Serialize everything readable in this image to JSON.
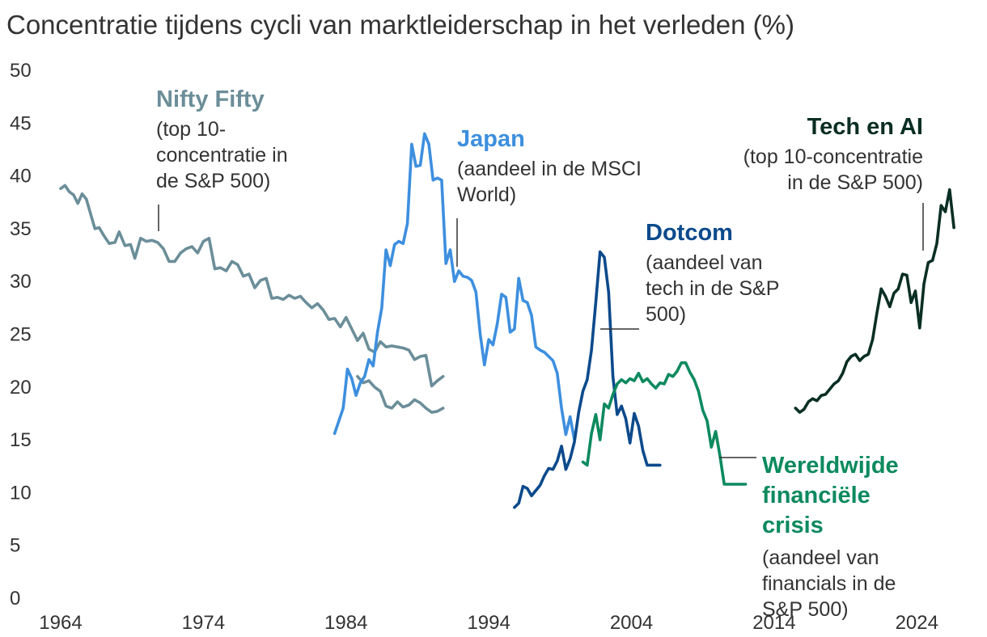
{
  "chart_data": {
    "type": "line",
    "title": "Concentratie tijdens cycli van marktleiderschap in het verleden (%)",
    "xlabel": "",
    "ylabel": "",
    "xlim": [
      1964,
      2027.5
    ],
    "ylim": [
      0,
      50
    ],
    "xticks": [
      "1964",
      "1974",
      "1984",
      "1994",
      "2004",
      "2014",
      "2024"
    ],
    "yticks": [
      "0",
      "5",
      "10",
      "15",
      "20",
      "25",
      "30",
      "35",
      "40",
      "45",
      "50"
    ],
    "grid": false,
    "legend": "none",
    "series": [
      {
        "name": "Nifty Fifty",
        "color": "#6b8e99",
        "x": [
          1964.0,
          1964.3,
          1964.6,
          1964.9,
          1965.2,
          1965.5,
          1965.8,
          1966.1,
          1966.4,
          1966.7,
          1967.0,
          1967.4,
          1967.8,
          1968.1,
          1968.5,
          1968.9,
          1969.2,
          1969.6,
          1970.0,
          1970.4,
          1970.8,
          1971.2,
          1971.6,
          1972.0,
          1972.4,
          1972.8,
          1973.2,
          1973.6,
          1974.0,
          1974.4,
          1974.8,
          1975.2,
          1975.6,
          1976.0,
          1976.4,
          1976.8,
          1977.2,
          1977.6,
          1978.0,
          1978.4,
          1978.8,
          1979.2,
          1979.6,
          1980.0,
          1980.4,
          1980.8,
          1981.2,
          1981.6,
          1982.0,
          1982.4,
          1982.8,
          1983.2,
          1983.6,
          1984.0,
          1984.4,
          1984.8,
          1985.2,
          1985.6,
          1986.0,
          1986.4,
          1986.8,
          1987.2,
          1987.6,
          1988.0,
          1988.4,
          1988.8,
          1989.2,
          1989.6,
          1990.0,
          1990.4,
          1990.8
        ],
        "values": [
          38.8,
          39.1,
          38.5,
          38.2,
          37.4,
          38.3,
          37.8,
          36.4,
          35.0,
          35.1,
          34.4,
          33.6,
          33.7,
          34.7,
          33.4,
          33.5,
          32.2,
          34.1,
          33.8,
          33.9,
          33.7,
          33.1,
          31.9,
          31.9,
          32.7,
          33.1,
          33.3,
          32.7,
          33.8,
          34.1,
          31.2,
          31.3,
          31.0,
          31.9,
          31.6,
          30.5,
          30.7,
          29.4,
          30.1,
          30.3,
          28.4,
          28.5,
          28.3,
          28.7,
          28.4,
          28.6,
          28.0,
          27.5,
          27.9,
          27.3,
          26.4,
          26.5,
          25.7,
          26.6,
          25.5,
          24.4,
          25.1,
          23.6,
          23.3,
          24.3,
          23.8,
          23.9,
          23.8,
          23.7,
          23.5,
          22.6,
          22.9,
          23.0,
          20.1,
          20.6,
          21.0
        ],
        "x2": [
          1984.8,
          1985.2,
          1985.6,
          1986.0,
          1986.4,
          1986.8,
          1987.2,
          1987.6,
          1988.0,
          1988.4,
          1988.8,
          1989.2,
          1989.6,
          1990.0,
          1990.4,
          1990.8
        ],
        "values2": [
          21.0,
          20.4,
          20.6,
          20.0,
          19.6,
          18.2,
          18.0,
          18.6,
          18.1,
          18.3,
          18.8,
          18.5,
          18.0,
          17.6,
          17.7,
          18.0
        ]
      },
      {
        "name": "Japan",
        "color": "#3d8fdf",
        "x": [
          1983.2,
          1983.5,
          1983.8,
          1984.1,
          1984.4,
          1984.7,
          1985.0,
          1985.3,
          1985.6,
          1985.9,
          1986.2,
          1986.5,
          1986.8,
          1987.1,
          1987.4,
          1987.7,
          1988.0,
          1988.3,
          1988.6,
          1988.9,
          1989.2,
          1989.5,
          1989.8,
          1990.1,
          1990.4,
          1990.7,
          1991.0,
          1991.3,
          1991.6,
          1991.9,
          1992.2,
          1992.5,
          1992.8,
          1993.1,
          1993.4,
          1993.7,
          1994.0,
          1994.3,
          1994.6,
          1994.9,
          1995.2,
          1995.5,
          1995.8,
          1996.1,
          1996.4,
          1996.7,
          1997.0,
          1997.3,
          1997.6,
          1997.9,
          1998.2,
          1998.5,
          1998.8,
          1999.1,
          1999.4,
          1999.7,
          2000.0
        ],
        "values": [
          15.6,
          16.8,
          18.0,
          21.7,
          20.8,
          19.2,
          20.4,
          21.0,
          22.6,
          22.0,
          25.2,
          27.5,
          33.0,
          31.5,
          33.5,
          33.8,
          33.6,
          35.5,
          43.0,
          40.9,
          41.0,
          44.0,
          43.0,
          39.6,
          39.8,
          39.6,
          31.7,
          33.0,
          30.0,
          31.0,
          30.5,
          30.4,
          30.1,
          29.0,
          25.0,
          22.1,
          24.5,
          24.0,
          26.0,
          28.8,
          28.5,
          25.2,
          25.5,
          30.3,
          28.2,
          28.0,
          26.8,
          23.8,
          23.5,
          23.3,
          22.9,
          22.5,
          21.3,
          18.0,
          15.5,
          17.2,
          15.0
        ]
      },
      {
        "name": "Dotcom",
        "color": "#0c4a8c",
        "x": [
          1995.8,
          1996.1,
          1996.4,
          1996.7,
          1997.0,
          1997.3,
          1997.6,
          1997.9,
          1998.2,
          1998.5,
          1998.8,
          1999.1,
          1999.4,
          1999.7,
          2000.0,
          2000.3,
          2000.6,
          2000.9,
          2001.2,
          2001.5,
          2001.8,
          2002.1,
          2002.4,
          2002.7,
          2003.0,
          2003.3,
          2003.6,
          2003.9,
          2004.2,
          2004.5,
          2004.8,
          2005.1,
          2005.4,
          2005.7,
          2006.0
        ],
        "values": [
          8.6,
          9.0,
          10.6,
          10.4,
          9.7,
          10.2,
          10.7,
          11.6,
          12.3,
          12.2,
          13.0,
          14.4,
          12.2,
          13.2,
          14.8,
          17.6,
          19.6,
          20.7,
          23.5,
          28.0,
          32.8,
          32.3,
          29.0,
          21.0,
          17.4,
          18.2,
          17.0,
          14.7,
          17.5,
          16.3,
          14.0,
          12.6,
          12.6,
          12.6,
          12.6
        ]
      },
      {
        "name": "Wereldwijde financiële crisis",
        "color": "#0c8a5e",
        "x": [
          2000.6,
          2000.9,
          2001.2,
          2001.5,
          2001.8,
          2002.1,
          2002.4,
          2002.7,
          2003.0,
          2003.3,
          2003.6,
          2003.9,
          2004.2,
          2004.5,
          2004.8,
          2005.1,
          2005.4,
          2005.7,
          2006.0,
          2006.3,
          2006.6,
          2006.9,
          2007.2,
          2007.5,
          2007.8,
          2008.1,
          2008.4,
          2008.7,
          2009.0,
          2009.3,
          2009.6,
          2009.9,
          2010.2,
          2010.5,
          2010.8,
          2011.1,
          2011.4,
          2011.7,
          2012.0
        ],
        "values": [
          12.9,
          12.6,
          15.6,
          17.4,
          15.0,
          18.4,
          18.0,
          19.3,
          20.3,
          20.7,
          20.4,
          20.8,
          20.6,
          21.3,
          20.5,
          20.8,
          20.3,
          19.9,
          20.4,
          20.3,
          21.2,
          21.0,
          21.5,
          22.3,
          22.3,
          21.4,
          20.7,
          19.6,
          17.8,
          16.8,
          14.3,
          15.8,
          13.5,
          10.8,
          10.8,
          10.8,
          10.8,
          10.8,
          10.8
        ]
      },
      {
        "name": "Tech en AI",
        "color": "#0a2e24",
        "x": [
          2015.5,
          2015.8,
          2016.1,
          2016.4,
          2016.7,
          2017.0,
          2017.3,
          2017.6,
          2017.9,
          2018.2,
          2018.5,
          2018.8,
          2019.1,
          2019.4,
          2019.7,
          2020.0,
          2020.3,
          2020.6,
          2020.9,
          2021.2,
          2021.5,
          2021.8,
          2022.1,
          2022.4,
          2022.7,
          2023.0,
          2023.3,
          2023.6,
          2023.9,
          2024.2,
          2024.5,
          2024.8,
          2025.1,
          2025.4,
          2025.7,
          2026.0,
          2026.3,
          2026.6
        ],
        "values": [
          18.0,
          17.6,
          17.9,
          18.6,
          18.9,
          18.7,
          19.2,
          19.3,
          19.8,
          20.3,
          20.6,
          21.3,
          22.4,
          22.9,
          23.1,
          22.5,
          22.9,
          23.1,
          24.5,
          27.0,
          29.3,
          28.6,
          27.6,
          28.9,
          29.3,
          30.7,
          30.6,
          28.0,
          29.1,
          25.6,
          29.8,
          31.8,
          32.0,
          33.6,
          37.2,
          36.6,
          38.7,
          35.1
        ]
      }
    ],
    "annotations": [
      {
        "title": "Nifty Fifty",
        "lines": [
          "(top 10-",
          "concentratie in",
          "de S&P 500)"
        ]
      },
      {
        "title": "Japan",
        "lines": [
          "(aandeel in de MSCI",
          "World)"
        ]
      },
      {
        "title": "Dotcom",
        "lines": [
          "(aandeel van",
          "tech in de S&P",
          "500)"
        ]
      },
      {
        "title": "Tech en AI",
        "lines": [
          "(top 10-concentratie",
          "in de S&P 500)"
        ]
      },
      {
        "title_lines": [
          "Wereldwijde",
          "financiële",
          "crisis"
        ],
        "lines": [
          "(aandeel van",
          "financials in de",
          "S&P 500)"
        ]
      }
    ]
  }
}
